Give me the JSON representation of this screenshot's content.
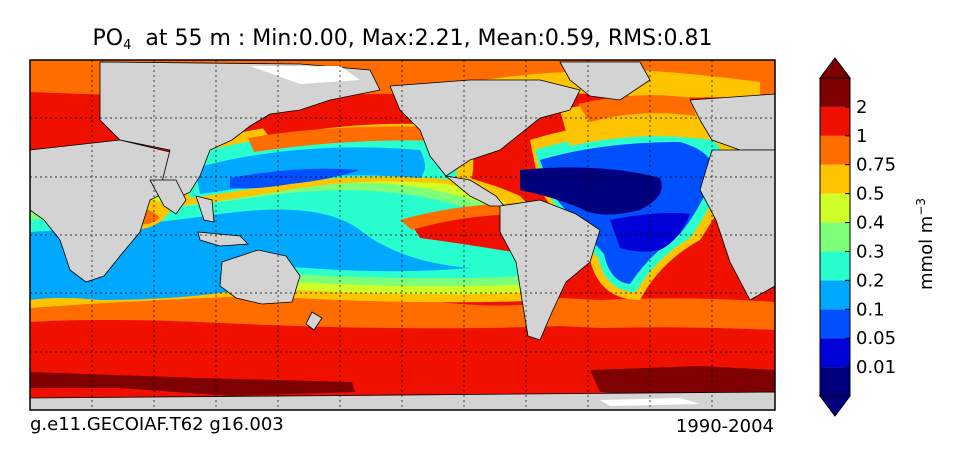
{
  "header": {
    "title_var": "PO",
    "title_sub": "4",
    "title_rest": "at 55 m : Min:0.00, Max:2.21, Mean:0.59, RMS:0.81"
  },
  "footer": {
    "left": "g.e11.GECOIAF.T62 g16.003",
    "right": "1990-2004"
  },
  "chart_data": {
    "type": "heatmap",
    "variable": "PO4",
    "depth_m": 55,
    "stats": {
      "min": 0.0,
      "max": 2.21,
      "mean": 0.59,
      "rms": 0.81
    },
    "colorbar": {
      "units_text": "mmol m",
      "units_sup": "−3",
      "levels": [
        "0.01",
        "0.05",
        "0.1",
        "0.2",
        "0.3",
        "0.4",
        "0.5",
        "0.75",
        "1",
        "2"
      ],
      "colors": [
        "#00007f",
        "#0000d8",
        "#0050ff",
        "#00a8ff",
        "#29ffce",
        "#7dff7a",
        "#ceff29",
        "#ffc400",
        "#ff6d00",
        "#ef1000",
        "#7f0000"
      ],
      "extend": "both"
    },
    "land_color": "#d3d3d3",
    "grid": true
  }
}
